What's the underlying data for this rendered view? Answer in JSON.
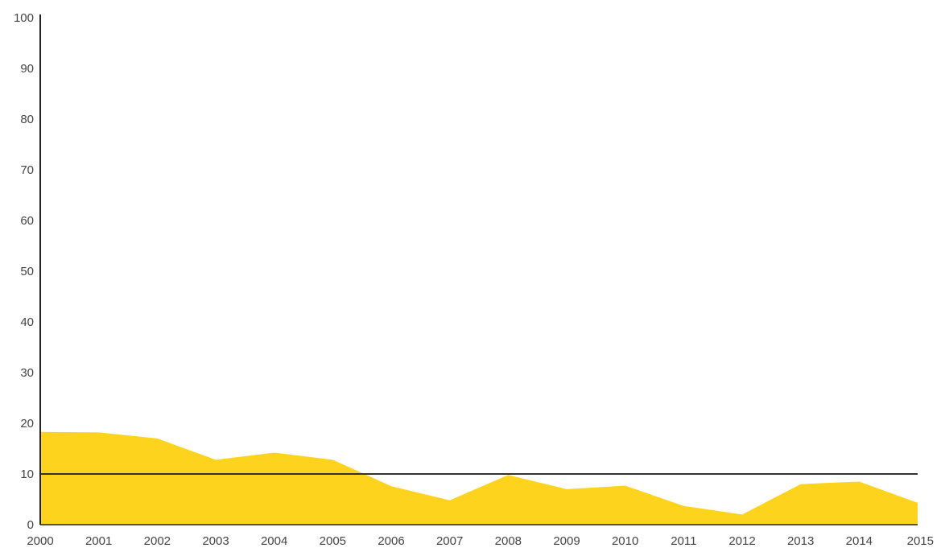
{
  "chart_data": {
    "type": "area",
    "title": "",
    "xlabel": "",
    "ylabel": "",
    "x": [
      "2000",
      "2001",
      "2002",
      "2003",
      "2004",
      "2005",
      "2006",
      "2007",
      "2008",
      "2009",
      "2010",
      "2011",
      "2012",
      "2013",
      "2014",
      "2015"
    ],
    "series": [
      {
        "values": [
          18.3,
          18.2,
          17.0,
          12.8,
          14.2,
          12.8,
          7.6,
          4.8,
          9.8,
          7.0,
          7.7,
          3.7,
          2.0,
          8.0,
          8.5,
          4.3
        ]
      }
    ],
    "reference_line": {
      "value": 10
    },
    "ylim": [
      0,
      100
    ],
    "yticks": [
      0,
      10,
      20,
      30,
      40,
      50,
      60,
      70,
      80,
      90,
      100
    ],
    "grid": false,
    "colors": {
      "area": "#fdd31e",
      "axis": "#222222",
      "reference_line": "#333333",
      "tick_text": "#444444"
    }
  }
}
